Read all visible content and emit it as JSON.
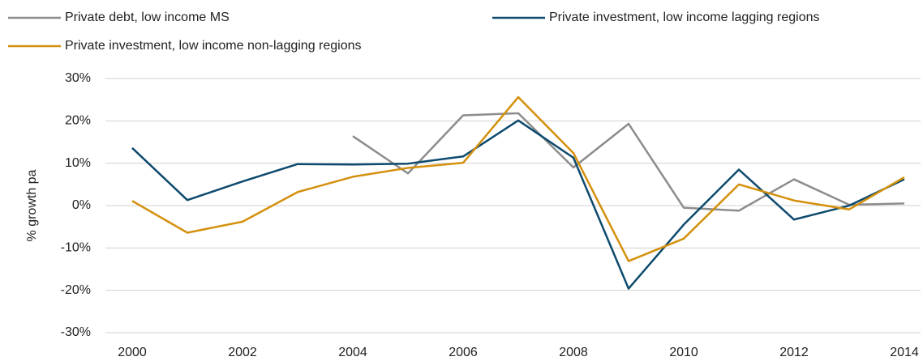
{
  "chart_data": {
    "type": "line",
    "y_label": "% growth pa",
    "x": [
      2000,
      2001,
      2002,
      2003,
      2004,
      2005,
      2006,
      2007,
      2008,
      2009,
      2010,
      2011,
      2012,
      2013,
      2014
    ],
    "xlim": [
      2000,
      2014
    ],
    "xticks": [
      2000,
      2002,
      2004,
      2006,
      2008,
      2010,
      2012,
      2014
    ],
    "ylim": [
      -30,
      30
    ],
    "yticks": [
      {
        "value": -30,
        "label": "-30%"
      },
      {
        "value": -20,
        "label": "-20%"
      },
      {
        "value": -10,
        "label": "-10%"
      },
      {
        "value": 0,
        "label": "0%"
      },
      {
        "value": 10,
        "label": "10%"
      },
      {
        "value": 20,
        "label": "20%"
      },
      {
        "value": 30,
        "label": "30%"
      }
    ],
    "grid": true,
    "legend": "top",
    "series": [
      {
        "name": "Private debt, low income MS",
        "color": "#8c8c8c",
        "values": [
          null,
          null,
          null,
          null,
          16.4,
          7.6,
          21.3,
          21.8,
          9.0,
          19.3,
          -0.5,
          -1.2,
          6.2,
          0.2,
          0.5
        ]
      },
      {
        "name": "Private investment, low income lagging regions",
        "color": "#0d4a6e",
        "values": [
          13.6,
          1.3,
          5.7,
          9.8,
          9.7,
          9.9,
          11.6,
          20.1,
          11.3,
          -19.6,
          -4.5,
          8.5,
          -3.3,
          0.0,
          6.2
        ]
      },
      {
        "name": "Private investment, low income non-lagging regions",
        "color": "#d4900d",
        "values": [
          1.1,
          -6.4,
          -3.8,
          3.2,
          6.8,
          8.9,
          10.1,
          25.6,
          12.4,
          -13.1,
          -7.8,
          5.0,
          1.2,
          -0.9,
          6.7
        ]
      }
    ]
  }
}
